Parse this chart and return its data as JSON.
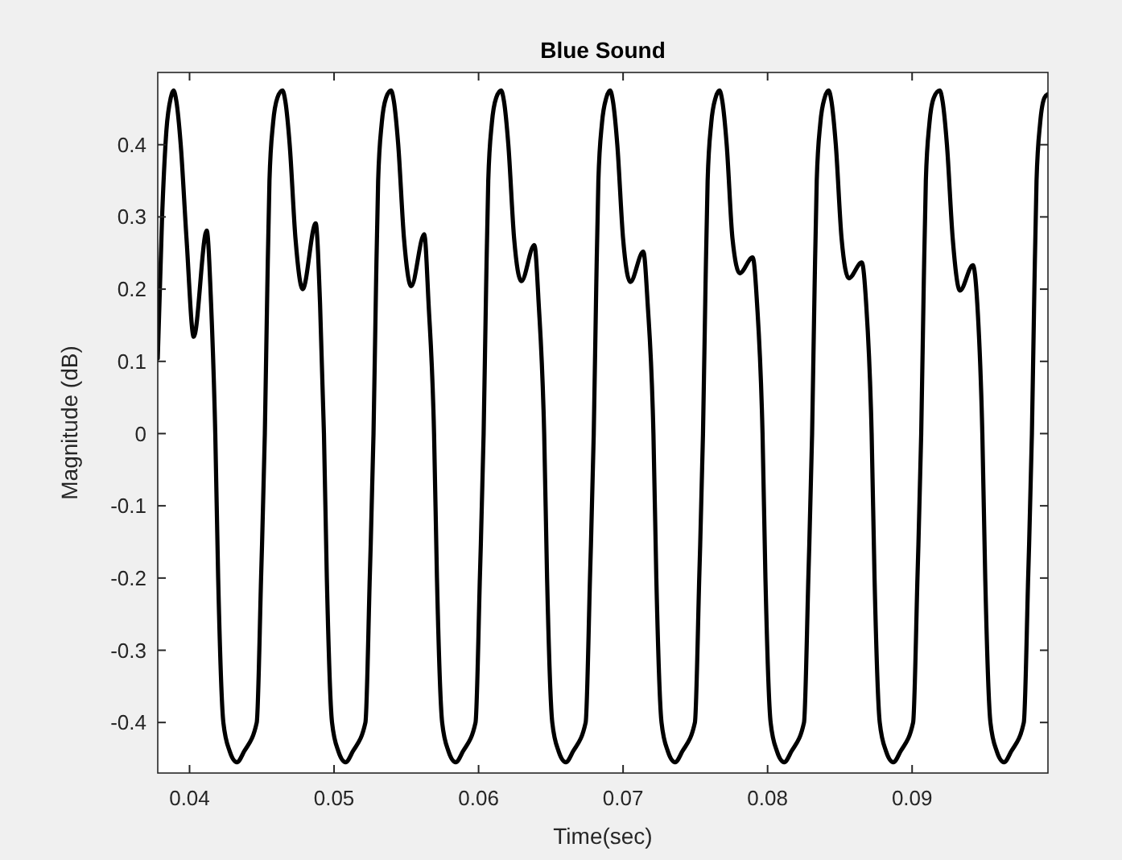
{
  "chart_data": {
    "type": "line",
    "title": "Blue Sound",
    "xlabel": "Time(sec)",
    "ylabel": "Magnitude (dB)",
    "xlim": [
      0.0378,
      0.0994
    ],
    "ylim": [
      -0.47,
      0.5
    ],
    "xticks": [
      0.04,
      0.05,
      0.06,
      0.07,
      0.08,
      0.09
    ],
    "yticks": [
      -0.4,
      -0.3,
      -0.2,
      -0.1,
      0,
      0.1,
      0.2,
      0.3,
      0.4
    ],
    "grid": false,
    "marker": "none",
    "line_style": "solid",
    "x": [
      0.0378,
      0.0381,
      0.0384,
      0.0387,
      0.03889,
      0.03909,
      0.03939,
      0.03979,
      0.04029,
      0.04119,
      0.04149,
      0.04178,
      0.04198,
      0.04234,
      0.04278,
      0.04328,
      0.04378,
      0.04465,
      0.04495,
      0.04521,
      0.04538,
      0.04553,
      0.04578,
      0.04608,
      0.04643,
      0.04663,
      0.04693,
      0.04733,
      0.04783,
      0.04873,
      0.04903,
      0.0493,
      0.0495,
      0.04986,
      0.0503,
      0.0508,
      0.0513,
      0.05217,
      0.05247,
      0.05273,
      0.0529,
      0.05305,
      0.0533,
      0.0536,
      0.05394,
      0.05414,
      0.05444,
      0.05484,
      0.05534,
      0.05624,
      0.05654,
      0.05692,
      0.05712,
      0.05748,
      0.05792,
      0.05842,
      0.05892,
      0.05979,
      0.06009,
      0.06035,
      0.06052,
      0.06067,
      0.06092,
      0.06122,
      0.06156,
      0.06176,
      0.06206,
      0.06246,
      0.06296,
      0.06386,
      0.06416,
      0.06454,
      0.06474,
      0.0651,
      0.06554,
      0.06604,
      0.06654,
      0.06741,
      0.06771,
      0.06797,
      0.06814,
      0.06829,
      0.06854,
      0.06884,
      0.0691,
      0.0693,
      0.0696,
      0.07,
      0.0705,
      0.0714,
      0.0717,
      0.0721,
      0.0723,
      0.07266,
      0.0731,
      0.0736,
      0.0741,
      0.07497,
      0.07527,
      0.07553,
      0.0757,
      0.07585,
      0.0761,
      0.0764,
      0.07667,
      0.07687,
      0.07717,
      0.07757,
      0.07807,
      0.07897,
      0.07927,
      0.07965,
      0.07985,
      0.08021,
      0.08065,
      0.08115,
      0.08165,
      0.08252,
      0.08282,
      0.08308,
      0.08325,
      0.0834,
      0.08365,
      0.08395,
      0.08422,
      0.08442,
      0.08472,
      0.08512,
      0.08562,
      0.08652,
      0.08682,
      0.0872,
      0.0874,
      0.08776,
      0.0882,
      0.0887,
      0.0892,
      0.09007,
      0.09037,
      0.09063,
      0.0908,
      0.09095,
      0.0912,
      0.0915,
      0.09191,
      0.09211,
      0.09241,
      0.09281,
      0.09331,
      0.09421,
      0.09451,
      0.09486,
      0.09506,
      0.09542,
      0.09586,
      0.09636,
      0.09686,
      0.09773,
      0.09803,
      0.09829,
      0.09846,
      0.09861,
      0.09886,
      0.09916,
      0.0994
    ],
    "series": [
      {
        "color": "#000000",
        "values": [
          0.104,
          0.3,
          0.42,
          0.465,
          0.475,
          0.46,
          0.4,
          0.27,
          0.134,
          0.281,
          0.18,
          0,
          -0.2,
          -0.4,
          -0.44,
          -0.455,
          -0.44,
          -0.4,
          -0.2,
          0,
          0.2,
          0.35,
          0.43,
          0.465,
          0.475,
          0.46,
          0.4,
          0.27,
          0.2,
          0.291,
          0.18,
          0,
          -0.2,
          -0.4,
          -0.44,
          -0.455,
          -0.44,
          -0.4,
          -0.2,
          0,
          0.2,
          0.35,
          0.43,
          0.465,
          0.475,
          0.46,
          0.4,
          0.27,
          0.204,
          0.276,
          0.18,
          0,
          -0.2,
          -0.4,
          -0.44,
          -0.455,
          -0.44,
          -0.4,
          -0.2,
          0,
          0.2,
          0.35,
          0.43,
          0.465,
          0.475,
          0.46,
          0.4,
          0.27,
          0.211,
          0.261,
          0.18,
          0,
          -0.2,
          -0.4,
          -0.44,
          -0.455,
          -0.44,
          -0.4,
          -0.2,
          0,
          0.2,
          0.35,
          0.43,
          0.465,
          0.475,
          0.46,
          0.4,
          0.27,
          0.21,
          0.252,
          0.18,
          0,
          -0.2,
          -0.4,
          -0.44,
          -0.455,
          -0.44,
          -0.4,
          -0.2,
          0,
          0.2,
          0.35,
          0.43,
          0.465,
          0.475,
          0.46,
          0.4,
          0.27,
          0.222,
          0.244,
          0.18,
          0,
          -0.2,
          -0.4,
          -0.44,
          -0.455,
          -0.44,
          -0.4,
          -0.2,
          0,
          0.2,
          0.35,
          0.43,
          0.465,
          0.475,
          0.46,
          0.4,
          0.27,
          0.215,
          0.237,
          0.18,
          0,
          -0.2,
          -0.4,
          -0.44,
          -0.455,
          -0.44,
          -0.4,
          -0.2,
          0,
          0.2,
          0.35,
          0.43,
          0.465,
          0.475,
          0.46,
          0.4,
          0.27,
          0.198,
          0.233,
          0.18,
          0,
          -0.2,
          -0.4,
          -0.44,
          -0.455,
          -0.44,
          -0.4,
          -0.2,
          0,
          0.2,
          0.35,
          0.43,
          0.465,
          0.47
        ]
      }
    ]
  }
}
